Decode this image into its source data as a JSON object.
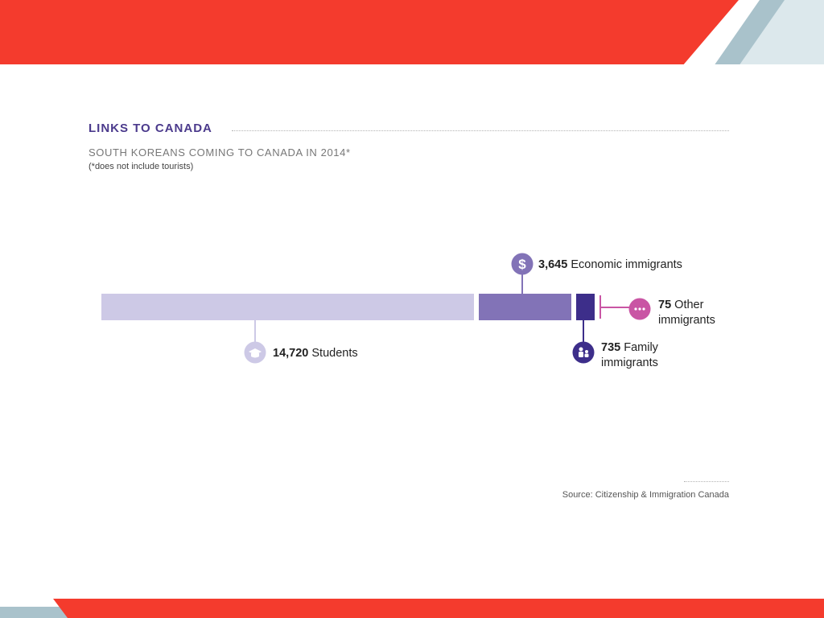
{
  "header": {
    "title": "LINKS TO CANADA",
    "subtitle": "SOUTH KOREANS COMING TO CANADA IN 2014*",
    "note": "(*does not include tourists)"
  },
  "footer": {
    "source": "Source: Citizenship & Immigration Canada"
  },
  "colors": {
    "banner_red": "#f43b2d",
    "banner_blue_dark": "#a9c2cb",
    "banner_blue_light": "#dce8ec",
    "students": "#cdc9e6",
    "economic": "#8273b7",
    "family": "#3d2e8a",
    "other": "#c955a4"
  },
  "chart_data": {
    "type": "bar",
    "orientation": "horizontal-stacked",
    "categories": [
      "Students",
      "Economic immigrants",
      "Family immigrants",
      "Other immigrants"
    ],
    "values": [
      14720,
      3645,
      735,
      75
    ],
    "labels": [
      {
        "value": "14,720",
        "text": [
          "Students"
        ],
        "icon": "graduation-cap-icon",
        "color": "#cdc9e6"
      },
      {
        "value": "3,645",
        "text": [
          "Economic immigrants"
        ],
        "icon": "dollar-icon",
        "color": "#8273b7"
      },
      {
        "value": "735",
        "text": [
          "Family",
          "immigrants"
        ],
        "icon": "family-icon",
        "color": "#3d2e8a"
      },
      {
        "value": "75",
        "text": [
          "Other",
          "immigrants"
        ],
        "icon": "ellipsis-icon",
        "color": "#c955a4"
      }
    ]
  }
}
